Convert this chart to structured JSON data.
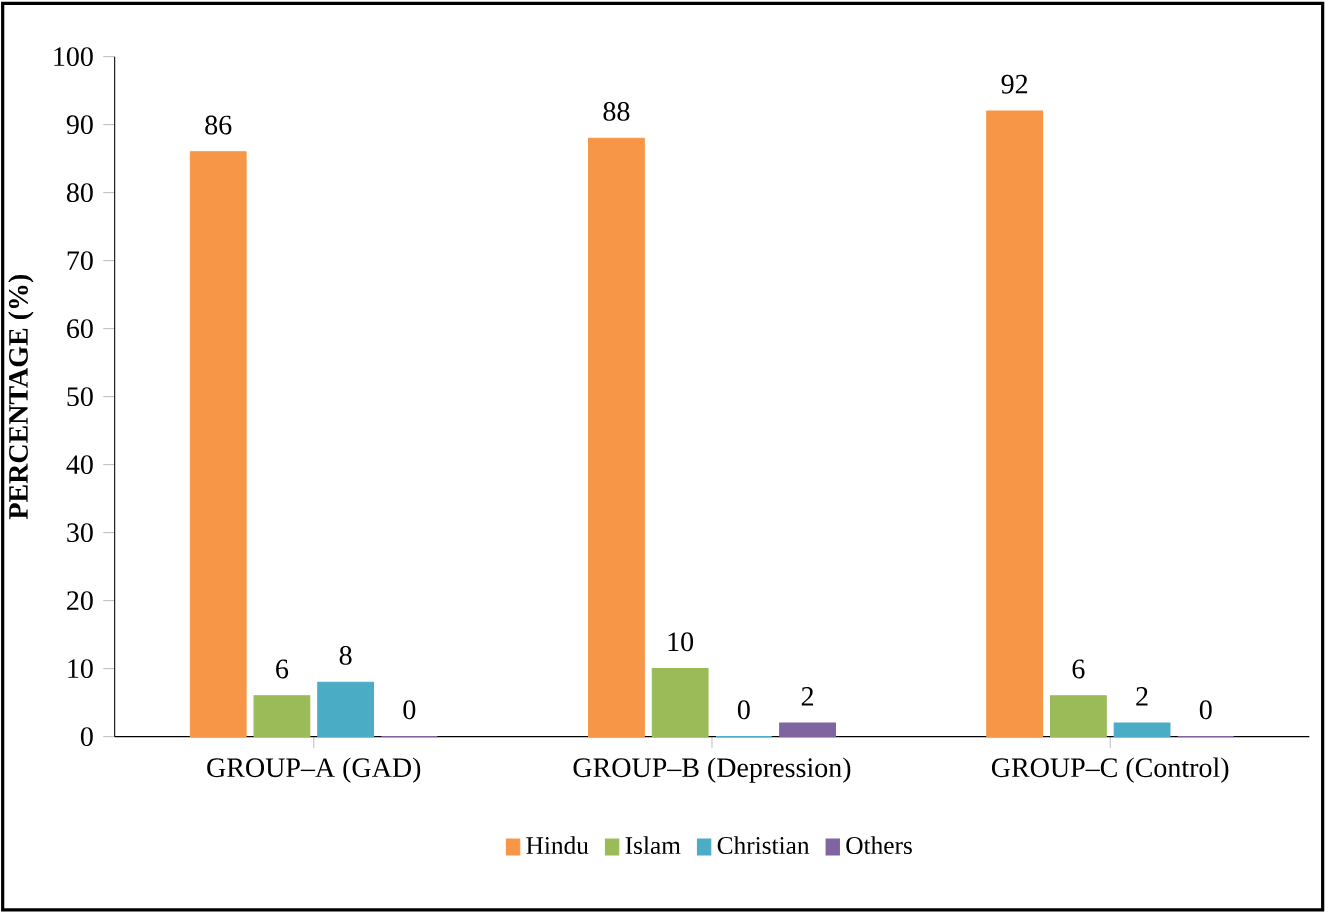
{
  "chart_data": {
    "type": "bar",
    "ylabel": "PERCENTAGE (%)",
    "categories": [
      "GROUP–A (GAD)",
      "GROUP–B (Depression)",
      "GROUP–C (Control)"
    ],
    "series": [
      {
        "name": "Hindu",
        "color": "#f79646",
        "values": [
          86,
          88,
          92
        ]
      },
      {
        "name": "Islam",
        "color": "#9bbb59",
        "values": [
          6,
          10,
          6
        ]
      },
      {
        "name": "Christian",
        "color": "#4bacc6",
        "values": [
          8,
          0,
          2
        ]
      },
      {
        "name": "Others",
        "color": "#8064a2",
        "values": [
          0,
          2,
          0
        ]
      }
    ],
    "ylim": [
      0,
      100
    ],
    "yticks": [
      0,
      10,
      20,
      30,
      40,
      50,
      60,
      70,
      80,
      90,
      100
    ],
    "data_labels": true,
    "legend": "bottom",
    "grid": false
  }
}
